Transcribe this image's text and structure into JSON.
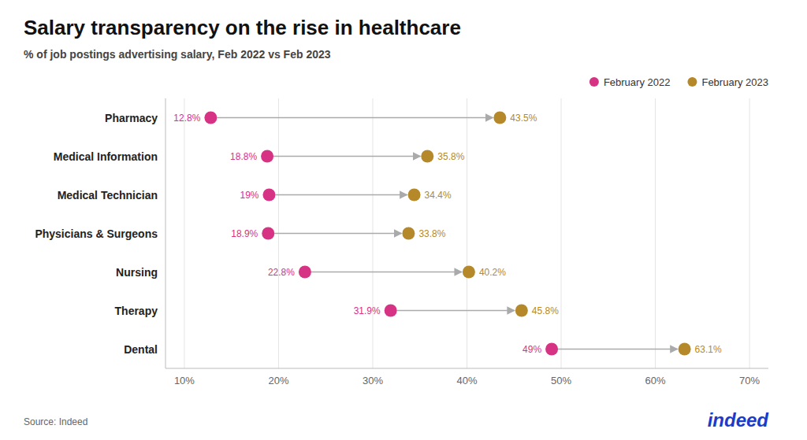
{
  "chart_data": {
    "type": "dumbbell",
    "orientation": "horizontal",
    "title": "Salary transparency on the rise in healthcare",
    "subtitle": "% of job postings advertising salary, Feb 2022 vs Feb 2023",
    "categories": [
      "Pharmacy",
      "Medical Information",
      "Medical Technician",
      "Physicians & Surgeons",
      "Nursing",
      "Therapy",
      "Dental"
    ],
    "series": [
      {
        "name": "February 2022",
        "color": "#d63384",
        "values": [
          12.8,
          18.8,
          19.0,
          18.9,
          22.8,
          31.9,
          49.0
        ],
        "value_labels": [
          "12.8%",
          "18.8%",
          "19%",
          "18.9%",
          "22.8%",
          "31.9%",
          "49%"
        ]
      },
      {
        "name": "February 2023",
        "color": "#b5892a",
        "values": [
          43.5,
          35.8,
          34.4,
          33.8,
          40.2,
          45.8,
          63.1
        ],
        "value_labels": [
          "43.5%",
          "35.8%",
          "34.4%",
          "33.8%",
          "40.2%",
          "45.8%",
          "63.1%"
        ]
      }
    ],
    "xlim": [
      8,
      72
    ],
    "xticks": [
      {
        "value": 10,
        "label": "10%"
      },
      {
        "value": 20,
        "label": "20%"
      },
      {
        "value": 30,
        "label": "30%"
      },
      {
        "value": 40,
        "label": "40%"
      },
      {
        "value": 50,
        "label": "50%"
      },
      {
        "value": 60,
        "label": "60%"
      },
      {
        "value": 70,
        "label": "70%"
      }
    ],
    "grid": true,
    "legend": "upper right",
    "data_labels": true,
    "annotations": [
      {
        "text": "Source: Indeed",
        "color": "#666666"
      },
      {
        "text": "indeed",
        "color": "#1a3cc8"
      }
    ]
  }
}
